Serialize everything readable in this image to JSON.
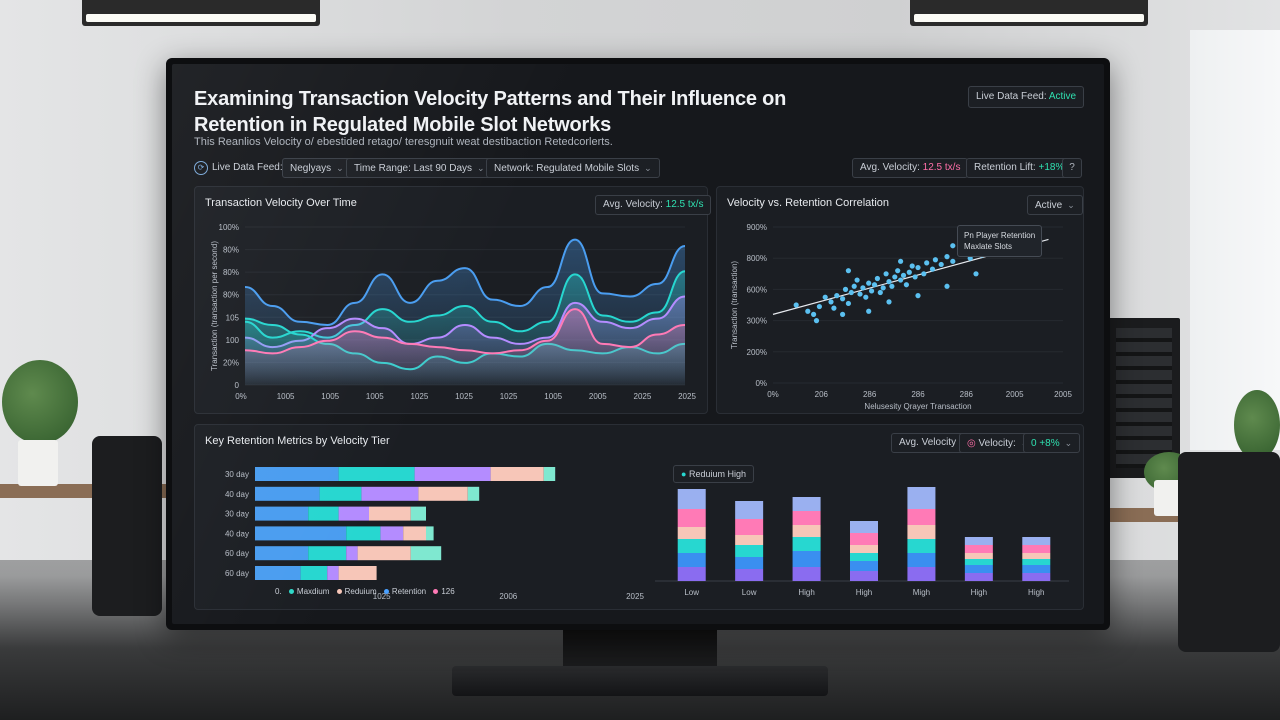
{
  "dashboard": {
    "title": "Examining Transaction Velocity Patterns and Their Influence on Retention in Regulated Mobile Slot Networks",
    "subtitle": "This Reanlios Velocity o/ ebestided retago/ teresgnuit weat destibaction Retedcorlerts.",
    "live_feed_badge": {
      "label": "Live Data Feed:",
      "status": "Active"
    }
  },
  "filters": {
    "live_data_feed_label": "Live Data Feed:",
    "live_data_feed_value": "Neglyays",
    "time_range_label": "Time Range:",
    "time_range_value": "Last 90 Days",
    "network_label": "Network:",
    "network_value": "Regulated Mobile Slots",
    "avg_velocity_label": "Avg. Velocity:",
    "avg_velocity_value": "12.5 tx/s",
    "retention_lift_label": "Retention Lift:",
    "retention_lift_value": "+18%",
    "help_glyph": "?"
  },
  "velocity_panel": {
    "title": "Transaction Velocity Over Time",
    "badge_label": "Avg. Velocity:",
    "badge_value": "12.5 tx/s"
  },
  "correlation_panel": {
    "title": "Velocity vs. Retention Correlation",
    "dropdown_value": "Active",
    "tooltip_line1": "Pn Player Retention",
    "tooltip_line2": "Maxlate Slots"
  },
  "metrics_panel": {
    "title": "Key Retention Metrics by Velocity Tier",
    "filter_avg_velocity": "Avg. Velocity",
    "filter_velocity": "Velocity:",
    "filter_range": "0 +8%",
    "legend": [
      {
        "label": "Maxdium",
        "color": "#2fd8c8"
      },
      {
        "label": "Reduium",
        "color": "#f7c6b8"
      },
      {
        "label": "Retention",
        "color": "#4aa0ff"
      },
      {
        "label": "126",
        "color": "#ff7ab6"
      }
    ],
    "legend_origin": "0.",
    "stack_legend": "Reduium High"
  },
  "colors": {
    "blue": "#4a9df0",
    "cyan": "#27d7d0",
    "purple": "#b48cff",
    "pink": "#ff7ab6",
    "peach": "#f7c6b8",
    "mint": "#7fe8d0",
    "accent_green": "#2fe0b0"
  },
  "chart_data": [
    {
      "type": "area",
      "title": "Transaction Velocity Over Time",
      "ylabel": "Transaction (transaction per second)",
      "y_tick_labels": [
        "0",
        "20%",
        "100",
        "105",
        "80%",
        "80%",
        "80%",
        "100%"
      ],
      "x_tick_labels": [
        "0%",
        "1005",
        "1005",
        "1005",
        "1025",
        "1025",
        "1025",
        "1005",
        "2005",
        "2025",
        "2025"
      ],
      "x": [
        0,
        1,
        2,
        3,
        4,
        5,
        6,
        7,
        8,
        9,
        10,
        11,
        12,
        13,
        14,
        15,
        16
      ],
      "series": [
        {
          "color": "#4a9df0",
          "values": [
            62,
            50,
            40,
            38,
            52,
            70,
            52,
            66,
            74,
            54,
            50,
            62,
            92,
            58,
            56,
            64,
            88
          ]
        },
        {
          "color": "#27d7d0",
          "values": [
            40,
            30,
            34,
            30,
            38,
            48,
            40,
            44,
            50,
            40,
            34,
            40,
            70,
            44,
            40,
            46,
            72
          ]
        },
        {
          "color": "#b48cff",
          "values": [
            30,
            24,
            28,
            36,
            42,
            36,
            26,
            30,
            38,
            30,
            26,
            30,
            52,
            40,
            36,
            42,
            56
          ]
        },
        {
          "color": "#27d7d0",
          "values": [
            42,
            38,
            32,
            26,
            20,
            14,
            10,
            18,
            14,
            20,
            18,
            26,
            22,
            20,
            24,
            20,
            26
          ]
        },
        {
          "color": "#ff7ab6",
          "values": [
            22,
            20,
            24,
            28,
            34,
            30,
            26,
            24,
            22,
            20,
            22,
            28,
            48,
            26,
            24,
            32,
            38
          ]
        }
      ]
    },
    {
      "type": "scatter",
      "title": "Velocity vs. Retention Correlation",
      "xlabel": "Nelusesity Qrayer Transaction",
      "ylabel": "Transaction (transaction)",
      "y_tick_labels": [
        "0%",
        "200%",
        "300%",
        "600%",
        "800%",
        "900%"
      ],
      "x_tick_labels": [
        "0%",
        "206",
        "286",
        "286",
        "286",
        "2005",
        "2005"
      ],
      "points": [
        [
          8,
          50
        ],
        [
          12,
          46
        ],
        [
          14,
          44
        ],
        [
          16,
          49
        ],
        [
          18,
          55
        ],
        [
          20,
          52
        ],
        [
          21,
          48
        ],
        [
          22,
          56
        ],
        [
          24,
          54
        ],
        [
          25,
          60
        ],
        [
          26,
          51
        ],
        [
          27,
          58
        ],
        [
          28,
          62
        ],
        [
          29,
          66
        ],
        [
          30,
          57
        ],
        [
          31,
          61
        ],
        [
          32,
          55
        ],
        [
          33,
          64
        ],
        [
          34,
          59
        ],
        [
          35,
          63
        ],
        [
          36,
          67
        ],
        [
          37,
          58
        ],
        [
          38,
          61
        ],
        [
          39,
          70
        ],
        [
          40,
          65
        ],
        [
          41,
          62
        ],
        [
          42,
          68
        ],
        [
          43,
          72
        ],
        [
          44,
          66
        ],
        [
          45,
          69
        ],
        [
          46,
          63
        ],
        [
          47,
          71
        ],
        [
          48,
          75
        ],
        [
          49,
          68
        ],
        [
          50,
          74
        ],
        [
          52,
          70
        ],
        [
          53,
          77
        ],
        [
          55,
          73
        ],
        [
          56,
          79
        ],
        [
          58,
          76
        ],
        [
          60,
          81
        ],
        [
          62,
          78
        ],
        [
          65,
          83
        ],
        [
          68,
          80
        ],
        [
          70,
          86
        ],
        [
          72,
          82
        ],
        [
          75,
          88
        ],
        [
          78,
          85
        ],
        [
          80,
          90
        ],
        [
          85,
          92
        ],
        [
          15,
          40
        ],
        [
          24,
          44
        ],
        [
          33,
          46
        ],
        [
          40,
          52
        ],
        [
          50,
          56
        ],
        [
          60,
          62
        ],
        [
          26,
          72
        ],
        [
          44,
          78
        ],
        [
          62,
          88
        ],
        [
          70,
          70
        ]
      ],
      "trend": [
        [
          0,
          44
        ],
        [
          95,
          92
        ]
      ]
    },
    {
      "type": "bar",
      "title": "Key Retention Metrics by Velocity Tier",
      "orientation": "horizontal-stacked",
      "categories": [
        "30 day",
        "40 day",
        "30 day",
        "40 day",
        "60 day",
        "60 day"
      ],
      "x_tick_labels": [
        "0.",
        "1025",
        "2006",
        "2025"
      ],
      "segment_colors": [
        "#4a9df0",
        "#27d7d0",
        "#b48cff",
        "#f7c6b8",
        "#7fe8d0"
      ],
      "series": [
        {
          "name": "blue",
          "values": [
            22,
            17,
            14,
            24,
            14,
            12
          ]
        },
        {
          "name": "cyan",
          "values": [
            20,
            11,
            8,
            9,
            10,
            7
          ]
        },
        {
          "name": "purple",
          "values": [
            20,
            15,
            8,
            6,
            3,
            3
          ]
        },
        {
          "name": "peach",
          "values": [
            14,
            13,
            11,
            6,
            14,
            10
          ]
        },
        {
          "name": "mint",
          "values": [
            3,
            3,
            4,
            2,
            8,
            0
          ]
        }
      ]
    },
    {
      "type": "bar",
      "orientation": "vertical-stacked",
      "categories": [
        "Low",
        "Low",
        "High",
        "High",
        "Migh",
        "High",
        "High"
      ],
      "segment_colors": [
        "#8a6cf0",
        "#3a8ff0",
        "#27d7d0",
        "#f7c6b8",
        "#ff7ab6",
        "#9ab0f0"
      ],
      "series": [
        {
          "name": "s1",
          "values": [
            14,
            12,
            14,
            10,
            14,
            8,
            8
          ]
        },
        {
          "name": "s2",
          "values": [
            14,
            12,
            16,
            10,
            14,
            8,
            8
          ]
        },
        {
          "name": "s3",
          "values": [
            14,
            12,
            14,
            8,
            14,
            6,
            6
          ]
        },
        {
          "name": "s4",
          "values": [
            12,
            10,
            12,
            8,
            14,
            6,
            6
          ]
        },
        {
          "name": "s5",
          "values": [
            18,
            16,
            14,
            12,
            16,
            8,
            8
          ]
        },
        {
          "name": "s6",
          "values": [
            20,
            18,
            14,
            12,
            22,
            8,
            8
          ]
        }
      ]
    }
  ]
}
